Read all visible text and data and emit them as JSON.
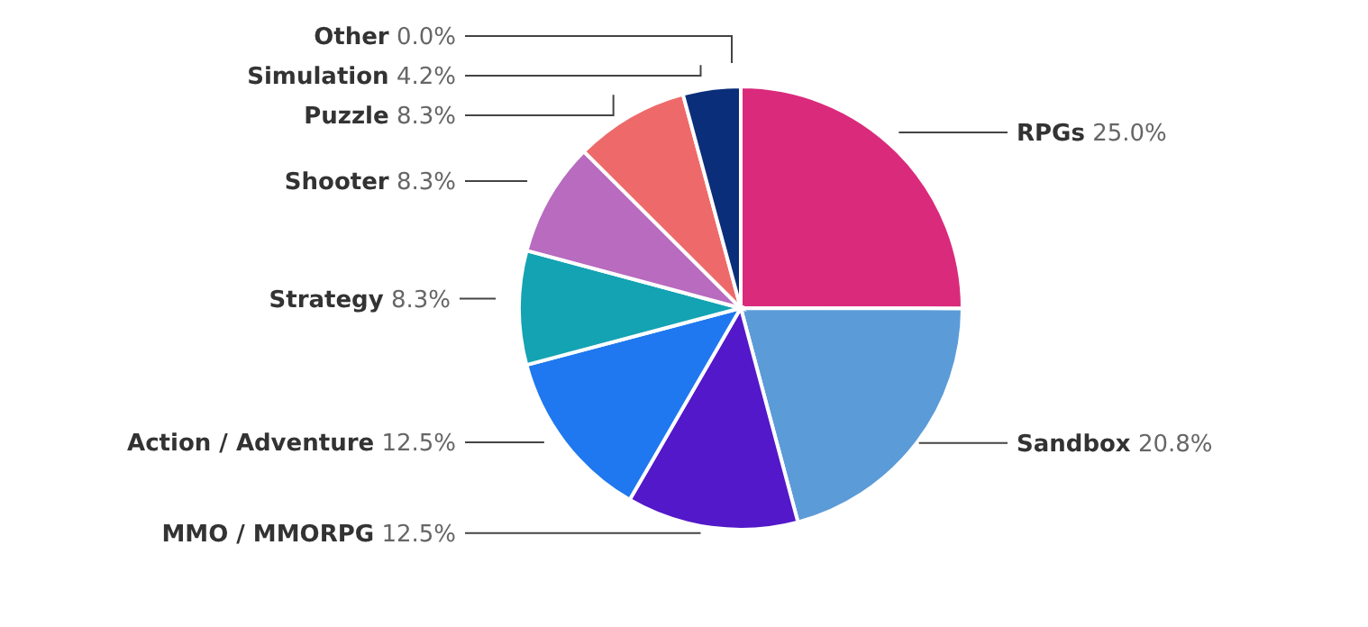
{
  "chart_data": {
    "type": "pie",
    "categories": [
      "RPGs",
      "Sandbox",
      "MMO / MMORPG",
      "Action / Adventure",
      "Strategy",
      "Shooter",
      "Puzzle",
      "Simulation",
      "Other"
    ],
    "values": [
      25.0,
      20.8,
      12.5,
      12.5,
      8.3,
      8.3,
      8.3,
      4.2,
      0.0
    ],
    "colors": [
      "#da2a7c",
      "#5b9bd8",
      "#5218c9",
      "#1f78ef",
      "#13a3b3",
      "#b86bbf",
      "#ee6a6a",
      "#0a2e7a",
      "#888888"
    ],
    "value_labels": [
      "25.0%",
      "20.8%",
      "12.5%",
      "12.5%",
      "8.3%",
      "8.3%",
      "8.3%",
      "4.2%",
      "0.0%"
    ]
  }
}
